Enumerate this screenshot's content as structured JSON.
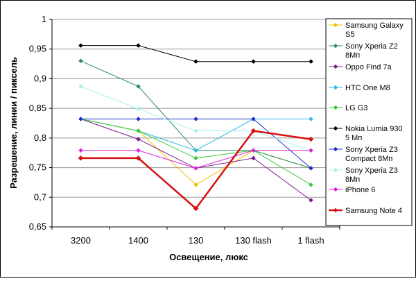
{
  "chart_data": {
    "type": "line",
    "title": "",
    "xlabel": "Освещение, люкс",
    "ylabel": "Разрешение, линии / пиксель",
    "categories": [
      "3200",
      "1400",
      "130",
      "130 flash",
      "1 flash"
    ],
    "ylim": [
      0.65,
      1
    ],
    "yticks": [
      0.65,
      0.7,
      0.75,
      0.8,
      0.85,
      0.9,
      0.95,
      1
    ],
    "ytick_labels": [
      "0,65",
      "0,7",
      "0,75",
      "0,8",
      "0,85",
      "0,9",
      "0,95",
      "1"
    ],
    "grid": "horizontal",
    "legend_position": "right",
    "series": [
      {
        "name": "Samsung Galaxy S5",
        "legend_lines": [
          "Samsung Galaxy",
          "S5"
        ],
        "color": "#f2c200",
        "marker": "diamond",
        "width": 1,
        "values": [
          0.832,
          0.812,
          0.721,
          0.779,
          0.749
        ]
      },
      {
        "name": "Sony Xperia Z2 8Мп",
        "legend_lines": [
          "Sony Xperia Z2",
          "8Мп"
        ],
        "color": "#2e8b6b",
        "marker": "diamond",
        "width": 1,
        "values": [
          0.93,
          0.887,
          0.779,
          0.779,
          0.749
        ]
      },
      {
        "name": "Oppo Find 7a",
        "legend_lines": [
          "Oppo Find 7a"
        ],
        "color": "#7b1c8a",
        "marker": "diamond",
        "width": 1,
        "values": [
          0.832,
          0.798,
          0.749,
          0.766,
          0.695
        ]
      },
      {
        "name": "HTC One M8",
        "legend_lines": [
          "HTC One M8"
        ],
        "color": "#2bb8e8",
        "marker": "diamond",
        "width": 1,
        "values": [
          0.832,
          0.812,
          0.779,
          0.832,
          0.832
        ]
      },
      {
        "name": "LG G3",
        "legend_lines": [
          "LG G3"
        ],
        "color": "#33cc33",
        "marker": "diamond",
        "width": 1,
        "values": [
          0.832,
          0.812,
          0.766,
          0.779,
          0.721
        ]
      },
      {
        "name": "Nokia Lumia 930 5 Мп",
        "legend_lines": [
          "Nokia Lumia 930",
          "5 Мп"
        ],
        "color": "#000000",
        "marker": "diamond",
        "width": 1,
        "values": [
          0.956,
          0.956,
          0.929,
          0.929,
          0.929
        ]
      },
      {
        "name": "Sony Xperia Z3 Compact 8Мп",
        "legend_lines": [
          "Sony Xperia Z3",
          "Compact 8Мп"
        ],
        "color": "#1a2fcc",
        "marker": "diamond",
        "width": 1,
        "values": [
          0.832,
          0.832,
          0.832,
          0.832,
          0.749
        ]
      },
      {
        "name": "Sony Xperia Z3 8Мп",
        "legend_lines": [
          "Sony Xperia Z3",
          "8Мп"
        ],
        "color": "#a8f0f0",
        "marker": "diamond",
        "width": 1,
        "values": [
          0.887,
          0.849,
          0.812,
          0.812,
          0.779
        ]
      },
      {
        "name": "iPhone 6",
        "legend_lines": [
          "iPhone 6"
        ],
        "color": "#e020e0",
        "marker": "diamond",
        "width": 1,
        "values": [
          0.779,
          0.779,
          0.749,
          0.779,
          0.779
        ]
      },
      {
        "name": "Samsung Note 4",
        "legend_lines": [
          "Samsung Note 4"
        ],
        "color": "#d81010",
        "marker": "diamond",
        "width": 2.5,
        "values": [
          0.766,
          0.766,
          0.681,
          0.812,
          0.798
        ]
      }
    ]
  }
}
